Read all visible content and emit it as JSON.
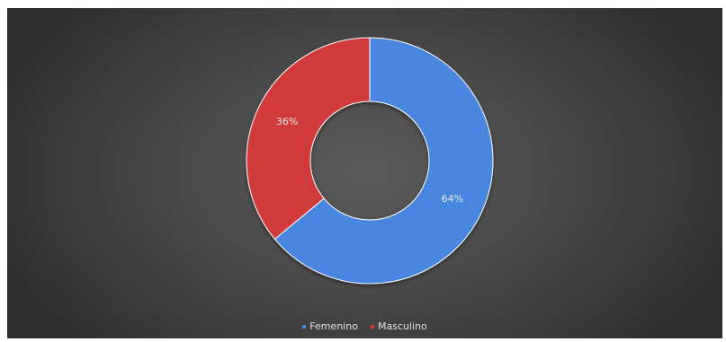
{
  "chart_data": {
    "type": "pie",
    "variant": "doughnut",
    "title": "",
    "legend_position": "bottom",
    "slices": [
      {
        "name": "Femenino",
        "value": 64,
        "label": "64%",
        "color": "#4a86e0"
      },
      {
        "name": "Masculino",
        "value": 36,
        "label": "36%",
        "color": "#d13a3a"
      }
    ],
    "start_angle_deg": 0,
    "direction": "clockwise",
    "background": "#4a4a4a"
  }
}
